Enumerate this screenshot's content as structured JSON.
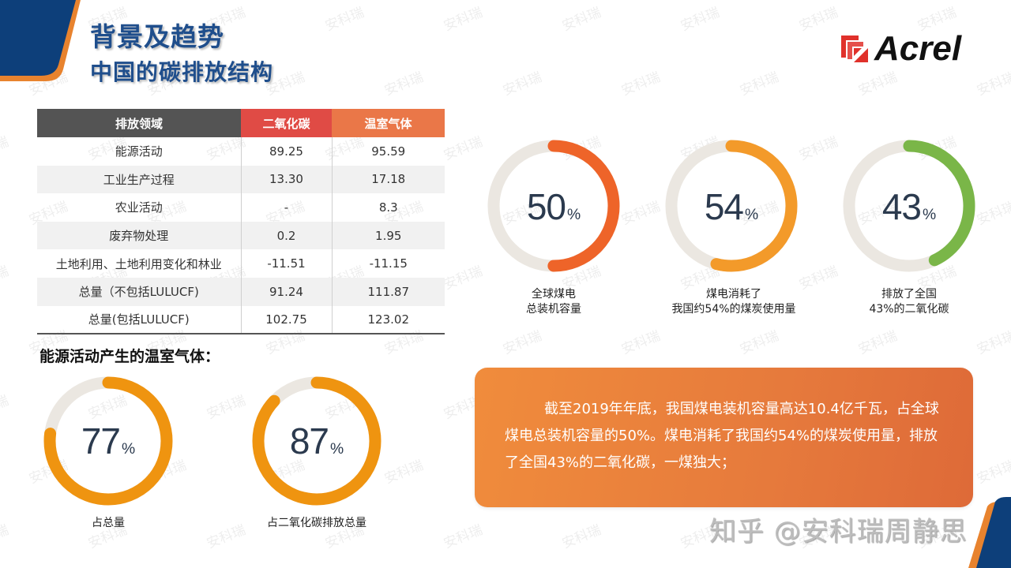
{
  "slide": {
    "title": "背景及趋势",
    "subtitle": "中国的碳排放结构",
    "logo_text": "Acrel",
    "watermark_text": "安科瑞",
    "footer_credit": "知乎 @安科瑞周静思"
  },
  "colors": {
    "title_blue": "#1f4e8c",
    "corner_blue": "#0d3f7a",
    "corner_orange": "#e8832e",
    "header_dark": "#545454",
    "header_red": "#e04b45",
    "header_orange": "#ea7748",
    "donut_track": "#ebe7e1",
    "donut_red_orange": "#ee6429",
    "donut_orange": "#f39a2a",
    "donut_green": "#7ab648",
    "donut_amber": "#ef9410",
    "logo_red": "#e0312b"
  },
  "table": {
    "headers": [
      "排放领域",
      "二氧化碳",
      "温室气体"
    ],
    "rows": [
      [
        "能源活动",
        "89.25",
        "95.59"
      ],
      [
        "工业生产过程",
        "13.30",
        "17.18"
      ],
      [
        "农业活动",
        "-",
        "8.3"
      ],
      [
        "废弃物处理",
        "0.2",
        "1.95"
      ],
      [
        "土地利用、土地利用变化和林业",
        "-11.51",
        "-11.15"
      ],
      [
        "总量（不包括LULUCF)",
        "91.24",
        "111.87"
      ],
      [
        "总量(包括LULUCF)",
        "102.75",
        "123.02"
      ]
    ]
  },
  "energy_section": {
    "label": "能源活动产生的温室气体：",
    "donuts": [
      {
        "value": "77",
        "unit": "%",
        "label": "占总量"
      },
      {
        "value": "87",
        "unit": "%",
        "label": "占二氧化碳排放总量"
      }
    ]
  },
  "coal_donuts": [
    {
      "value": "50",
      "unit": "%",
      "label_line1": "全球煤电",
      "label_line2": "总装机容量"
    },
    {
      "value": "54",
      "unit": "%",
      "label_line1": "煤电消耗了",
      "label_line2": "我国约54%的煤炭使用量"
    },
    {
      "value": "43",
      "unit": "%",
      "label_line1": "排放了全国",
      "label_line2": "43%的二氧化碳"
    }
  ],
  "info_box": {
    "text": "截至2019年年底，我国煤电装机容量高达10.4亿千瓦，占全球煤电总装机容量的50%。煤电消耗了我国约54%的煤炭使用量，排放了全国43%的二氧化碳，一煤独大；"
  },
  "chart_data": {
    "type": "table",
    "title": "中国的碳排放结构",
    "columns": [
      "排放领域",
      "二氧化碳",
      "温室气体"
    ],
    "rows": [
      [
        "能源活动",
        89.25,
        95.59
      ],
      [
        "工业生产过程",
        13.3,
        17.18
      ],
      [
        "农业活动",
        null,
        8.3
      ],
      [
        "废弃物处理",
        0.2,
        1.95
      ],
      [
        "土地利用、土地利用变化和林业",
        -11.51,
        -11.15
      ],
      [
        "总量（不包括LULUCF)",
        91.24,
        111.87
      ],
      [
        "总量(包括LULUCF)",
        102.75,
        123.02
      ]
    ],
    "gauges": [
      {
        "label": "占总量",
        "value": 77
      },
      {
        "label": "占二氧化碳排放总量",
        "value": 87
      },
      {
        "label": "全球煤电总装机容量",
        "value": 50
      },
      {
        "label": "煤电消耗了我国约54%的煤炭使用量",
        "value": 54
      },
      {
        "label": "排放了全国43%的二氧化碳",
        "value": 43
      }
    ]
  }
}
